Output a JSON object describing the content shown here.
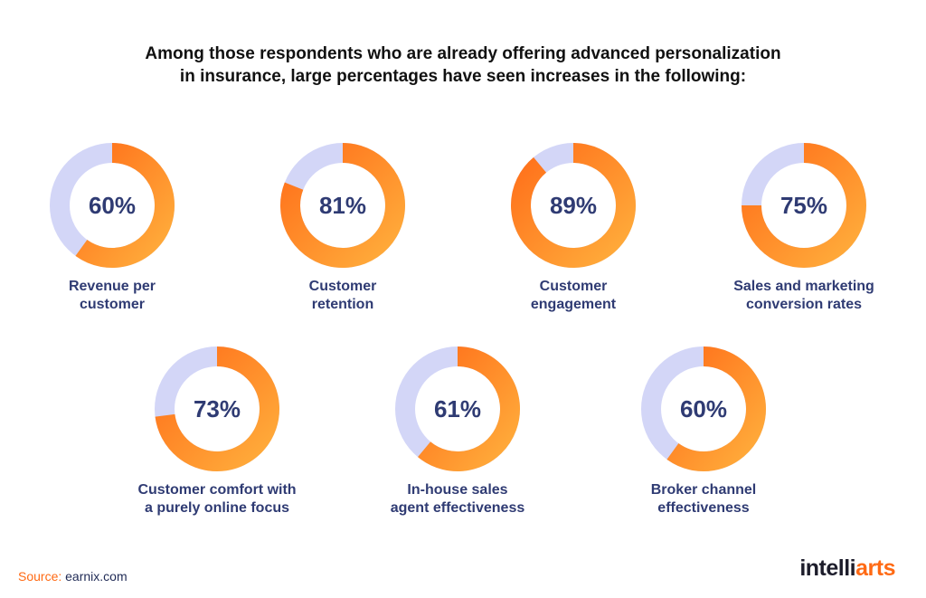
{
  "headline": {
    "line1": "Among those respondents who are already offering advanced personalization",
    "line2": "in insurance, large percentages have seen increases in the following:"
  },
  "chart_data": {
    "type": "donut",
    "unit": "%",
    "items": [
      {
        "value": 60,
        "label": "60%",
        "caption": [
          "Revenue per",
          "customer"
        ]
      },
      {
        "value": 81,
        "label": "81%",
        "caption": [
          "Customer",
          "retention"
        ]
      },
      {
        "value": 89,
        "label": "89%",
        "caption": [
          "Customer",
          "engagement"
        ]
      },
      {
        "value": 75,
        "label": "75%",
        "caption": [
          "Sales and marketing",
          "conversion rates"
        ]
      },
      {
        "value": 73,
        "label": "73%",
        "caption": [
          "Customer comfort with",
          "a purely online focus"
        ]
      },
      {
        "value": 61,
        "label": "61%",
        "caption": [
          "In-house sales",
          "agent effectiveness"
        ]
      },
      {
        "value": 60,
        "label": "60%",
        "caption": [
          "Broker channel",
          "effectiveness"
        ]
      }
    ]
  },
  "colors": {
    "arc_start": "#ff6f1a",
    "arc_end": "#ffae3c",
    "track": "#d3d6f7",
    "hole": "#ffffff",
    "value_text": "#2f3b73"
  },
  "footer": {
    "source_label": "Source:",
    "source_value": "earnix.com"
  },
  "logo": {
    "part1": "intelli",
    "part2": "arts"
  }
}
